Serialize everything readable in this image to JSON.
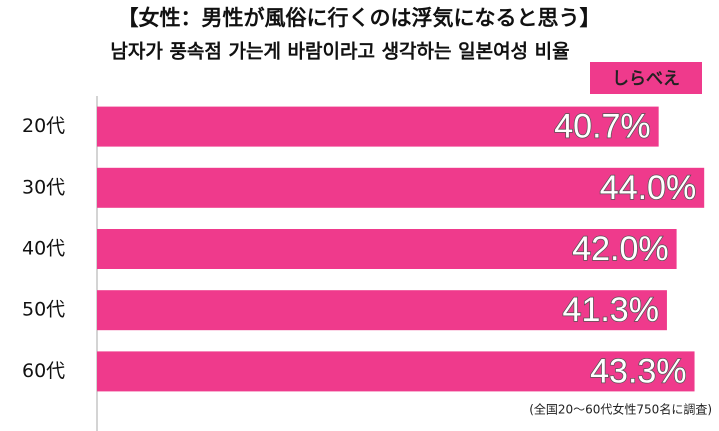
{
  "chart_data": {
    "type": "barh",
    "title": "【女性：男性が風俗に行くのは浮気になると思う】",
    "subtitle": "남자가 풍속점 가는게 바람이라고 생각하는 일본여성 비율",
    "logo": "しらべえ",
    "note": "(全国20〜60代女性750名に調査)",
    "categories": [
      "20代",
      "30代",
      "40代",
      "50代",
      "60代"
    ],
    "values": [
      40.7,
      44.0,
      42.0,
      41.3,
      43.3
    ],
    "value_labels": [
      "40.7%",
      "44.0%",
      "42.0%",
      "41.3%",
      "43.3%"
    ],
    "color": "#ef3a8c",
    "xlim": [
      0,
      45
    ]
  }
}
